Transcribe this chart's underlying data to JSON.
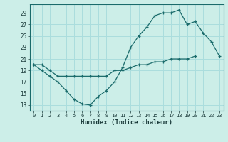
{
  "xlabel": "Humidex (Indice chaleur)",
  "background_color": "#cceee8",
  "grid_color": "#aadddd",
  "line_color": "#1a6b6b",
  "line1_x": [
    0,
    1,
    2,
    3,
    4,
    5,
    6,
    7,
    8,
    9,
    10,
    11,
    12,
    13,
    14,
    15,
    16,
    17,
    18,
    19,
    20
  ],
  "line1_y": [
    20.0,
    20.0,
    19.0,
    18.0,
    18.0,
    18.0,
    18.0,
    18.0,
    18.0,
    18.0,
    19.0,
    19.0,
    19.5,
    20.0,
    20.0,
    20.5,
    20.5,
    21.0,
    21.0,
    21.0,
    21.5
  ],
  "line2_x": [
    0,
    1,
    2,
    3,
    4,
    5,
    6,
    7,
    8,
    9,
    10,
    11,
    12,
    13,
    14,
    15,
    16,
    17,
    18,
    19,
    20,
    21,
    22,
    23
  ],
  "line2_y": [
    20.0,
    19.0,
    18.0,
    17.0,
    15.5,
    14.0,
    13.2,
    13.0,
    14.5,
    15.5,
    17.0,
    19.5,
    23.0,
    25.0,
    26.5,
    28.5,
    29.0,
    29.0,
    29.5,
    27.0,
    27.5,
    25.5,
    24.0,
    21.5
  ],
  "xlim": [
    -0.5,
    23.5
  ],
  "ylim": [
    12,
    30.5
  ],
  "yticks": [
    13,
    15,
    17,
    19,
    21,
    23,
    25,
    27,
    29
  ],
  "xticks": [
    0,
    1,
    2,
    3,
    4,
    5,
    6,
    7,
    8,
    9,
    10,
    11,
    12,
    13,
    14,
    15,
    16,
    17,
    18,
    19,
    20,
    21,
    22,
    23
  ]
}
